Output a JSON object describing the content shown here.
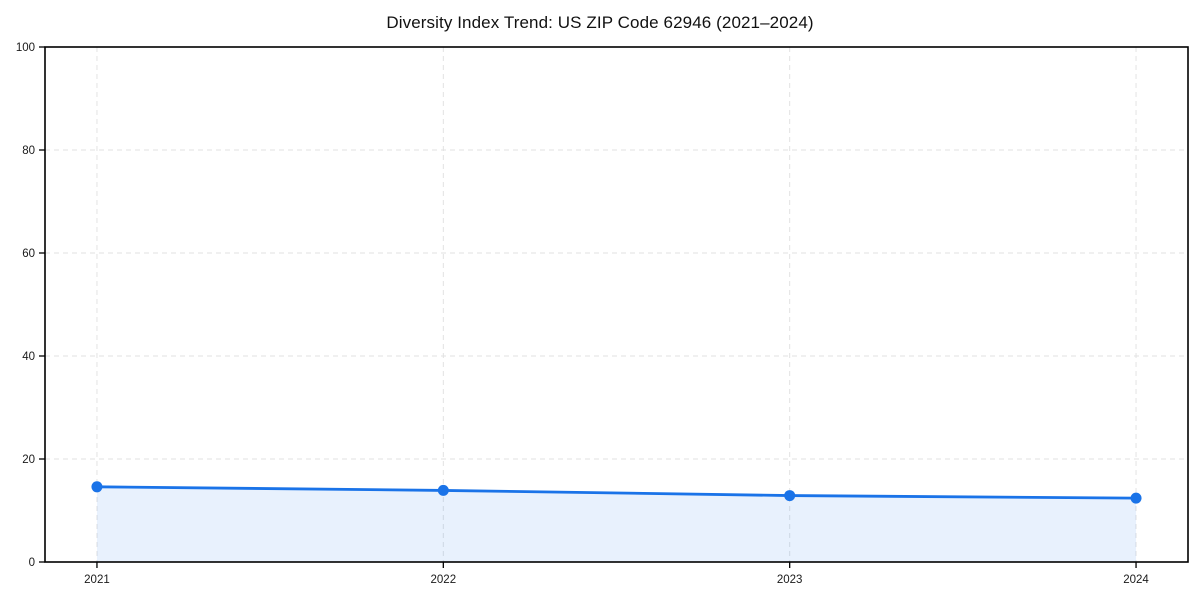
{
  "chart_data": {
    "type": "line",
    "title": "Diversity Index Trend: US ZIP Code 62946 (2021–2024)",
    "xlabel": "",
    "ylabel": "",
    "x": [
      2021,
      2022,
      2023,
      2024
    ],
    "series": [
      {
        "name": "Diversity Index",
        "values": [
          14.6,
          13.9,
          12.9,
          12.4
        ]
      }
    ],
    "xticks": [
      "2021",
      "2022",
      "2023",
      "2024"
    ],
    "yticks": [
      0,
      20,
      40,
      60,
      80,
      100
    ],
    "ylim": [
      0,
      100
    ],
    "x_margin_frac": 0.05,
    "grid": true,
    "area_fill": true,
    "legend": "none",
    "colors": {
      "line": "#1a73e8",
      "marker": "#1a73e8",
      "fill": "#1a73e8",
      "fill_opacity": 0.1,
      "grid": "#e2e2e2",
      "spine": "#000000",
      "tick_text": "#1a1a1a",
      "background": "#ffffff"
    },
    "marker_radius": 5.5,
    "line_width": 2.8
  }
}
